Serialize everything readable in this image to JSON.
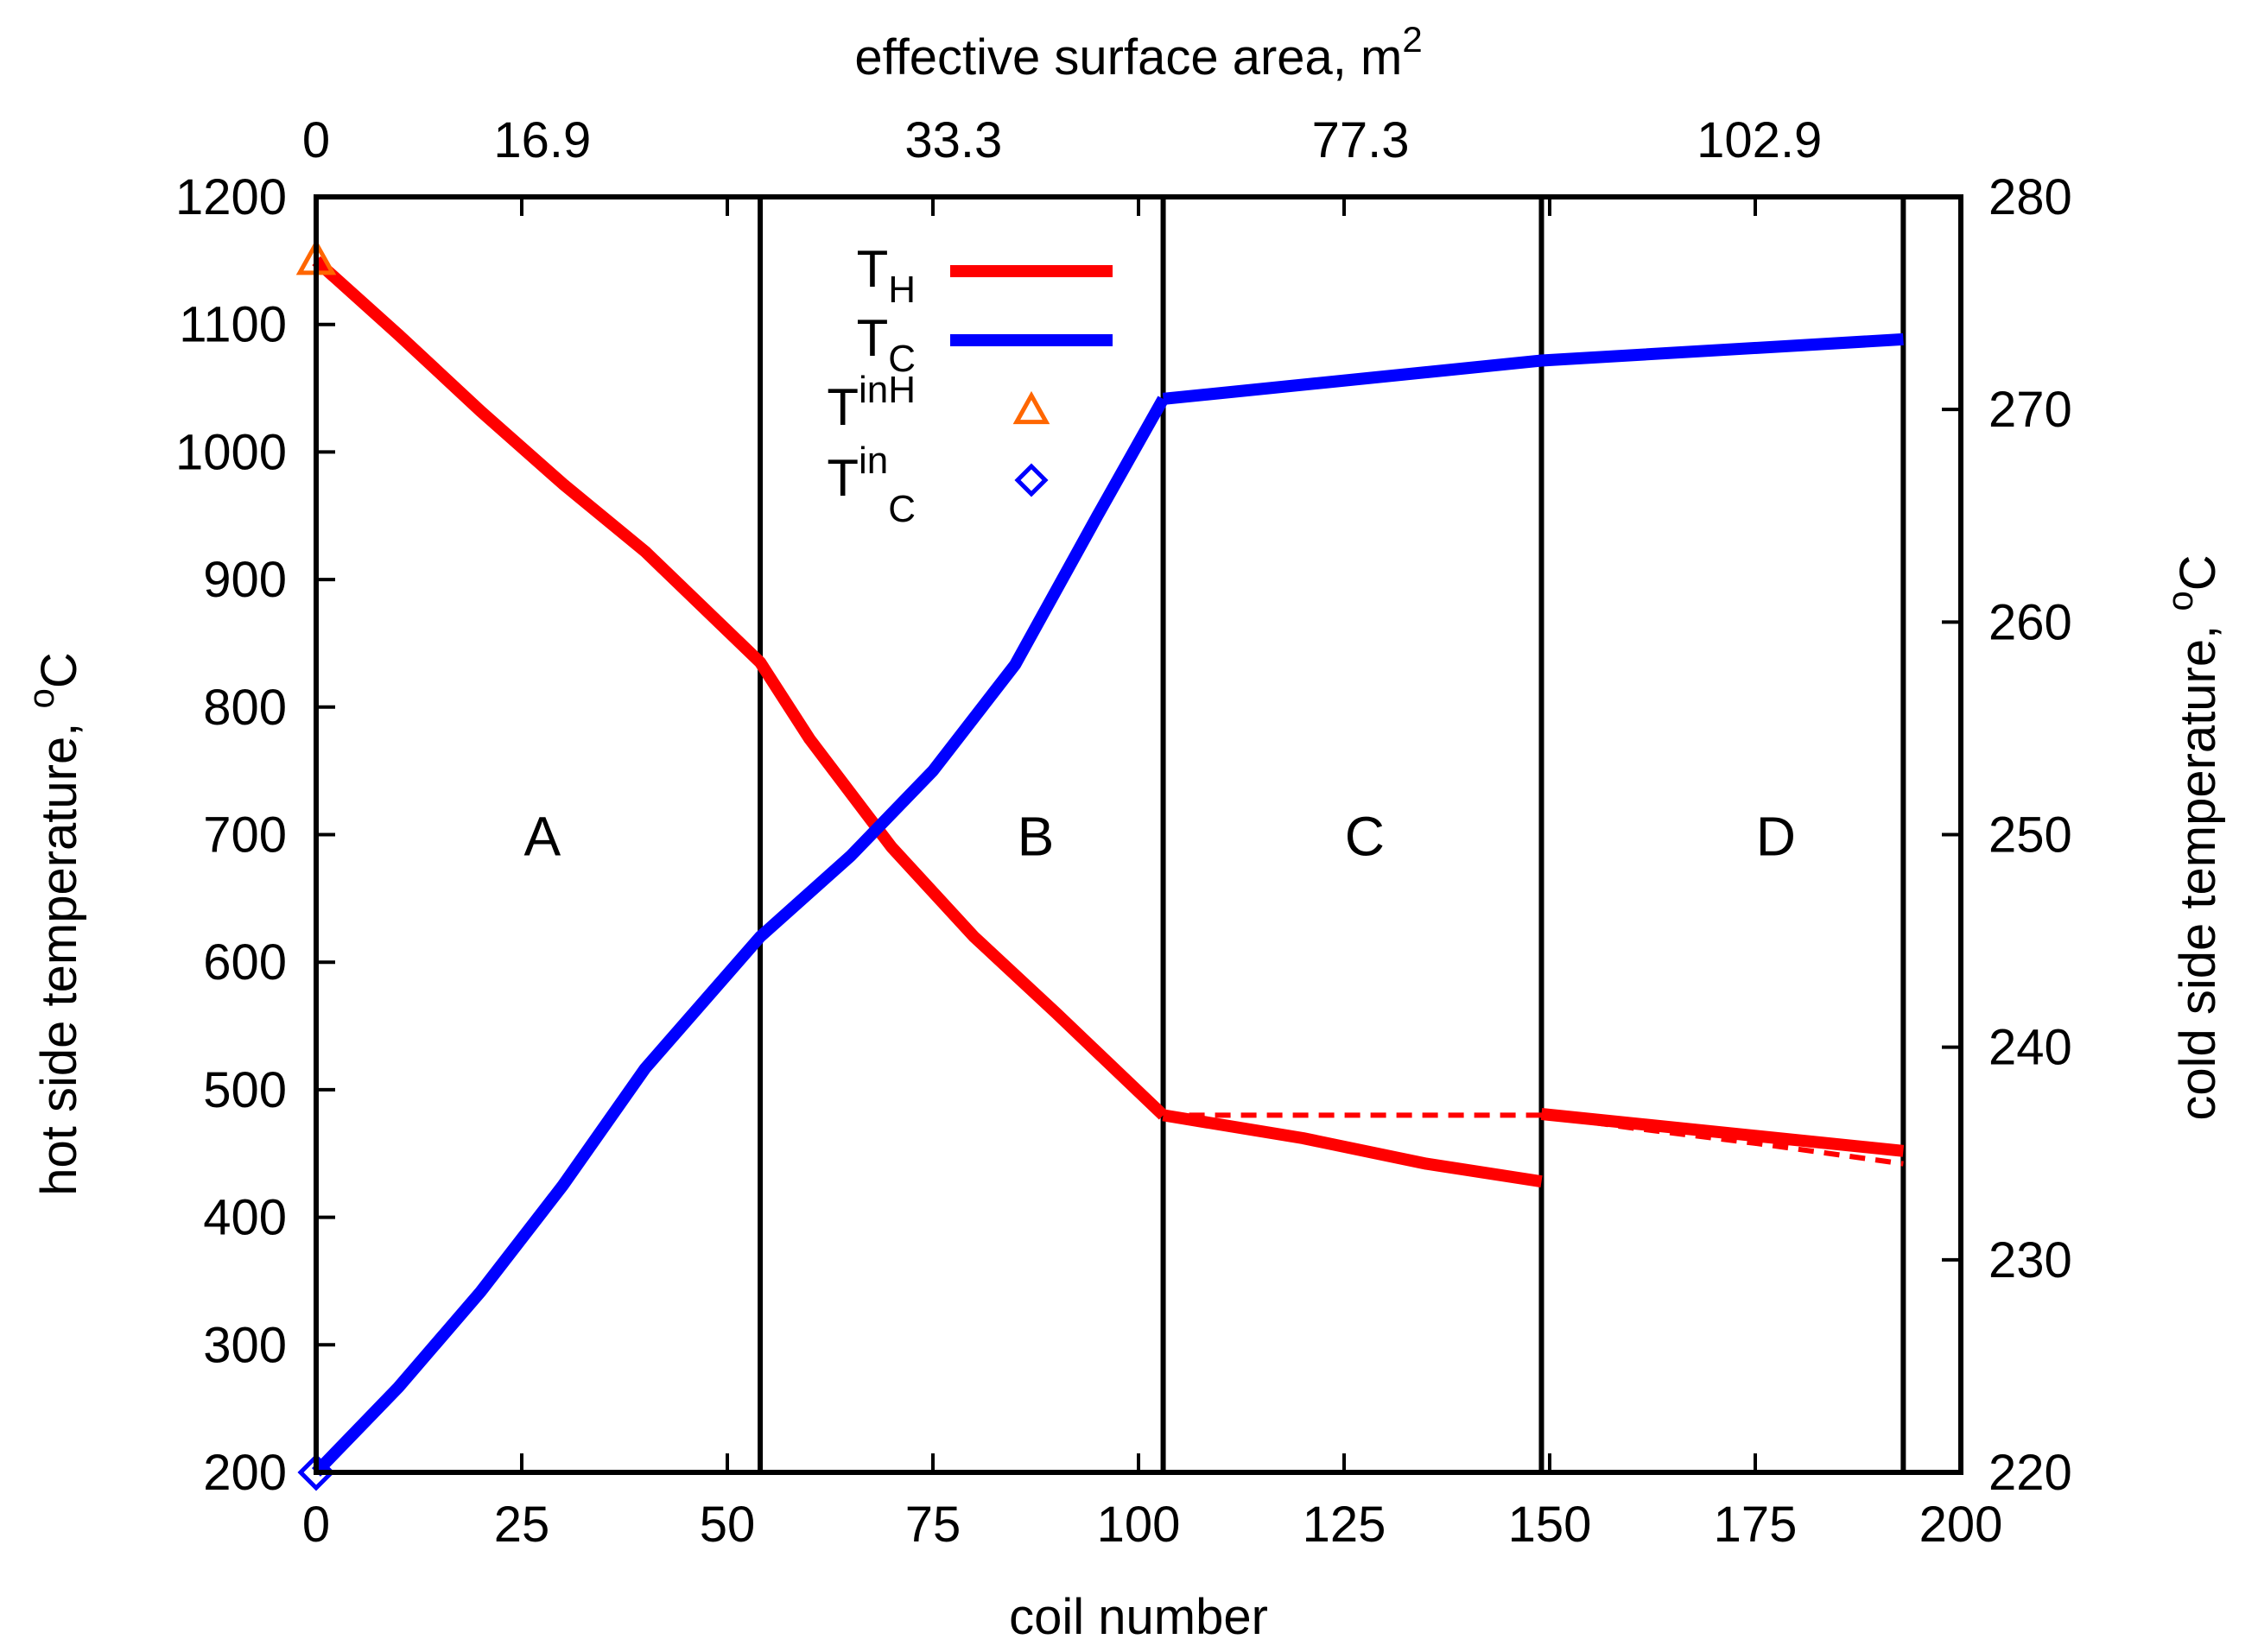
{
  "chart_data": {
    "type": "line",
    "xlabel": "coil number",
    "x2label_text": "effective surface area, m",
    "x2label_exp": "2",
    "ylabel_text": "hot side temperature, ",
    "ylabel_sup": "o",
    "ylabel_unit": "C",
    "y2label_text": "cold side temperature, ",
    "y2label_sup": "o",
    "y2label_unit": "C",
    "xlim": [
      0,
      200
    ],
    "ylim": [
      200,
      1200
    ],
    "y2lim": [
      220,
      280
    ],
    "x_ticks": [
      "0",
      "25",
      "50",
      "75",
      "100",
      "125",
      "150",
      "175",
      "200"
    ],
    "y_ticks": [
      "200",
      "300",
      "400",
      "500",
      "600",
      "700",
      "800",
      "900",
      "1000",
      "1100",
      "1200"
    ],
    "y2_ticks": [
      "220",
      "230",
      "240",
      "250",
      "260",
      "270",
      "280"
    ],
    "x2_ticks": [
      {
        "coil": 0,
        "label": "0"
      },
      {
        "coil": 27.5,
        "label": "16.9"
      },
      {
        "coil": 77.5,
        "label": "33.3"
      },
      {
        "coil": 127,
        "label": "77.3"
      },
      {
        "coil": 175.5,
        "label": "102.9"
      }
    ],
    "zone_boundaries": [
      54,
      103,
      149,
      193
    ],
    "zones": [
      {
        "label": "A",
        "x": 27.5
      },
      {
        "label": "B",
        "x": 87.5
      },
      {
        "label": "C",
        "x": 127.5
      },
      {
        "label": "D",
        "x": 177.5
      }
    ],
    "series": [
      {
        "name": "T_H",
        "color": "#ff0000",
        "axis": "left",
        "style": "solid",
        "segments": [
          [
            [
              0,
              1150
            ],
            [
              10,
              1092
            ],
            [
              20,
              1032
            ],
            [
              30,
              975
            ],
            [
              40,
              922
            ],
            [
              54,
              835
            ],
            [
              60,
              775
            ],
            [
              70,
              690
            ],
            [
              80,
              620
            ],
            [
              90,
              560
            ],
            [
              103,
              480
            ]
          ],
          [
            [
              103,
              480
            ],
            [
              120,
              462
            ],
            [
              135,
              442
            ],
            [
              149,
              428
            ]
          ],
          [
            [
              149,
              481
            ],
            [
              193,
              452
            ]
          ]
        ]
      },
      {
        "name": "T_H (dashed)",
        "color": "#ff0000",
        "axis": "left",
        "style": "dashed",
        "segments": [
          [
            [
              103,
              480
            ],
            [
              149,
              480
            ]
          ],
          [
            [
              149,
              480
            ],
            [
              160,
              470
            ],
            [
              175,
              458
            ],
            [
              193,
              442
            ]
          ]
        ]
      },
      {
        "name": "T_C",
        "color": "#0000ff",
        "axis": "right",
        "style": "solid",
        "segments": [
          [
            [
              0,
              220
            ],
            [
              10,
              224
            ],
            [
              20,
              228.5
            ],
            [
              30,
              233.5
            ],
            [
              40,
              239
            ],
            [
              54,
              245.2
            ],
            [
              65,
              249
            ],
            [
              75,
              253
            ],
            [
              85,
              258
            ],
            [
              95,
              265
            ],
            [
              103,
              270.5
            ]
          ],
          [
            [
              103,
              270.5
            ],
            [
              149,
              272.3
            ],
            [
              193,
              273.3
            ]
          ]
        ]
      }
    ],
    "markers": [
      {
        "name": "T_H in",
        "shape": "triangle",
        "color": "#ff6600",
        "x": 0,
        "y": 1150,
        "axis": "left"
      },
      {
        "name": "T_C in",
        "shape": "diamond",
        "color": "#0000ff",
        "x": 0,
        "y": 220,
        "axis": "right"
      }
    ],
    "legend": {
      "position": "top-center",
      "entries": [
        {
          "base": "T",
          "sub": "H",
          "sup": "",
          "kind": "line",
          "color": "#ff0000"
        },
        {
          "base": "T",
          "sub": "C",
          "sup": "",
          "kind": "line",
          "color": "#0000ff"
        },
        {
          "base": "T",
          "sub": "H",
          "sup": "in",
          "kind": "triangle",
          "color": "#ff6600"
        },
        {
          "base": "T",
          "sub": "C",
          "sup": "in",
          "kind": "diamond",
          "color": "#0000ff"
        }
      ]
    }
  }
}
